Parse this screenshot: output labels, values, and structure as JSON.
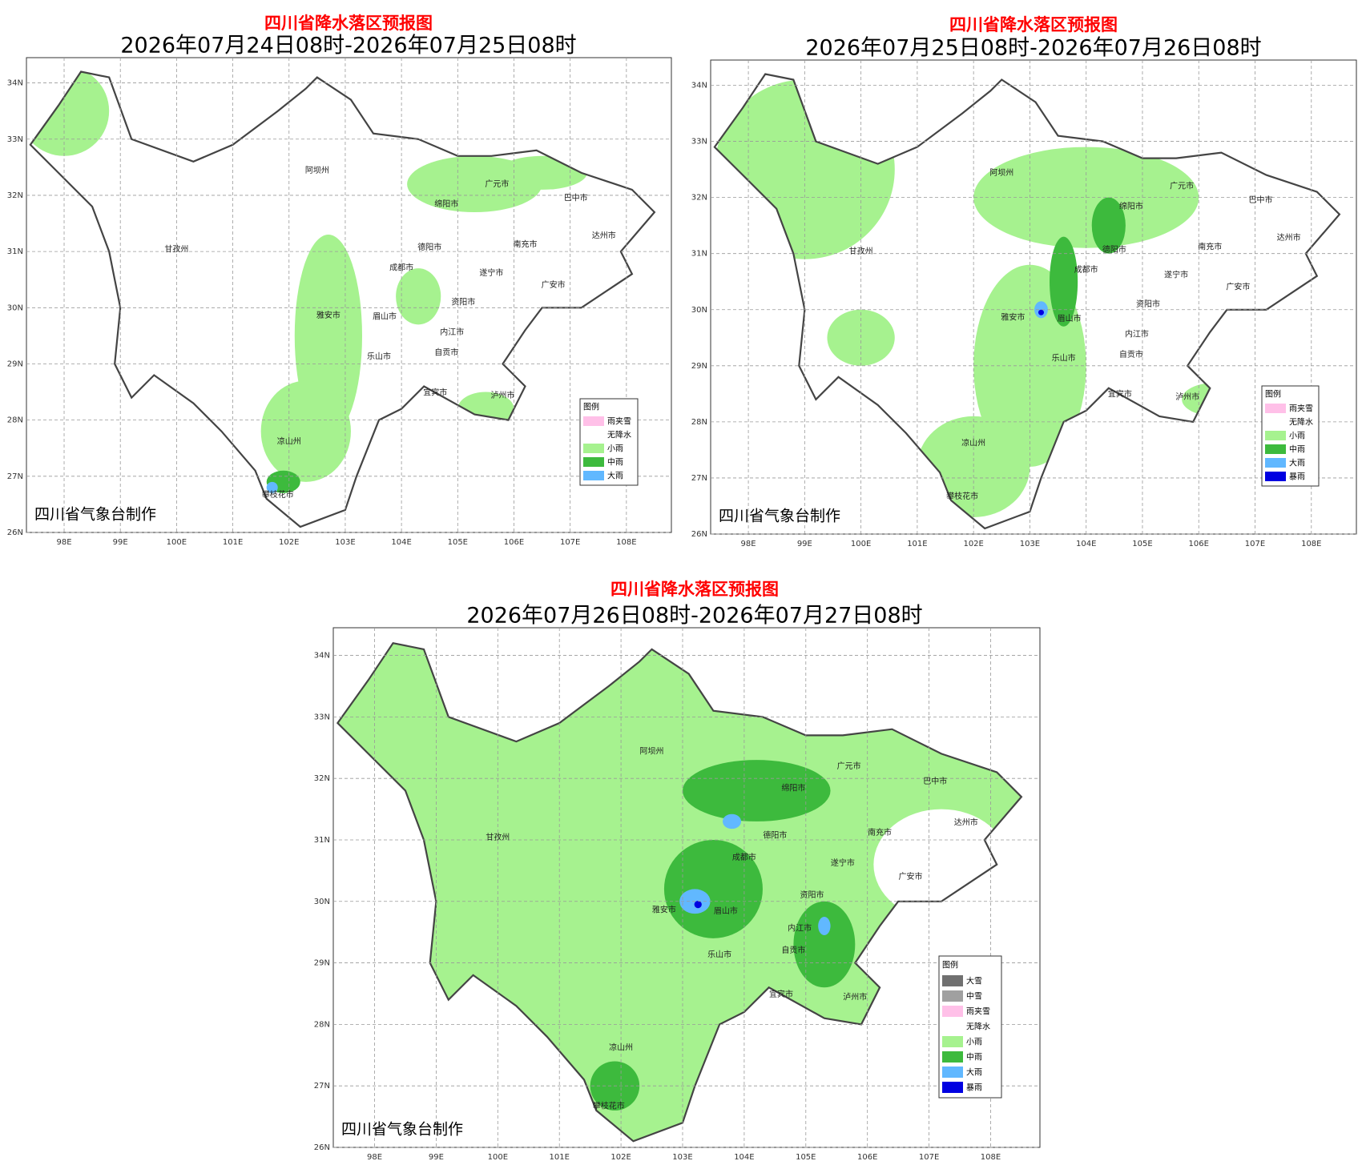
{
  "maps": [
    {
      "title": "四川省降水落区预报图",
      "period": "2026年07月24日08时-2026年07月25日08时",
      "credit": "四川省气象台制作",
      "legend_title": "图例",
      "legend": [
        {
          "label": "雨夹雪",
          "color": "#ffc0e8"
        },
        {
          "label": "无降水",
          "color": "#ffffff"
        },
        {
          "label": "小雨",
          "color": "#a6f28f"
        },
        {
          "label": "中雨",
          "color": "#3dba3d"
        },
        {
          "label": "大雨",
          "color": "#61b8ff"
        }
      ]
    },
    {
      "title": "四川省降水落区预报图",
      "period": "2026年07月25日08时-2026年07月26日08时",
      "credit": "四川省气象台制作",
      "legend_title": "图例",
      "legend": [
        {
          "label": "雨夹雪",
          "color": "#ffc0e8"
        },
        {
          "label": "无降水",
          "color": "#ffffff"
        },
        {
          "label": "小雨",
          "color": "#a6f28f"
        },
        {
          "label": "中雨",
          "color": "#3dba3d"
        },
        {
          "label": "大雨",
          "color": "#61b8ff"
        },
        {
          "label": "暴雨",
          "color": "#0000e1"
        }
      ]
    },
    {
      "title": "四川省降水落区预报图",
      "period": "2026年07月26日08时-2026年07月27日08时",
      "credit": "四川省气象台制作",
      "legend_title": "图例",
      "legend": [
        {
          "label": "大雪",
          "color": "#707070"
        },
        {
          "label": "中雪",
          "color": "#a0a0a0"
        },
        {
          "label": "雨夹雪",
          "color": "#ffc0e8"
        },
        {
          "label": "无降水",
          "color": "#ffffff"
        },
        {
          "label": "小雨",
          "color": "#a6f28f"
        },
        {
          "label": "中雨",
          "color": "#3dba3d"
        },
        {
          "label": "大雨",
          "color": "#61b8ff"
        },
        {
          "label": "暴雨",
          "color": "#0000e1"
        }
      ]
    }
  ],
  "lon_ticks": [
    {
      "value": 98,
      "label": "98E"
    },
    {
      "value": 99,
      "label": "99E"
    },
    {
      "value": 100,
      "label": "100E"
    },
    {
      "value": 101,
      "label": "101E"
    },
    {
      "value": 102,
      "label": "102E"
    },
    {
      "value": 103,
      "label": "103E"
    },
    {
      "value": 104,
      "label": "104E"
    },
    {
      "value": 105,
      "label": "105E"
    },
    {
      "value": 106,
      "label": "106E"
    },
    {
      "value": 107,
      "label": "107E"
    },
    {
      "value": 108,
      "label": "108E"
    }
  ],
  "lat_ticks": [
    {
      "value": 26,
      "label": "26N"
    },
    {
      "value": 27,
      "label": "27N"
    },
    {
      "value": 28,
      "label": "28N"
    },
    {
      "value": 29,
      "label": "29N"
    },
    {
      "value": 30,
      "label": "30N"
    },
    {
      "value": 31,
      "label": "31N"
    },
    {
      "value": 32,
      "label": "32N"
    },
    {
      "value": 33,
      "label": "33N"
    },
    {
      "value": 34,
      "label": "34N"
    }
  ],
  "cities": [
    "阿坝州",
    "甘孜州",
    "广元市",
    "巴中市",
    "绵阳市",
    "南充市",
    "达州市",
    "德阳市",
    "成都市",
    "遂宁市",
    "广安市",
    "资阳市",
    "雅安市",
    "眉山市",
    "内江市",
    "乐山市",
    "自贡市",
    "宜宾市",
    "泸州市",
    "凉山州",
    "攀枝花市"
  ]
}
